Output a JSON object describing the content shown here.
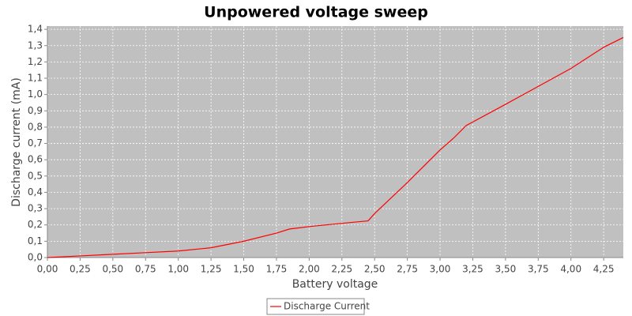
{
  "chart_data": {
    "type": "line",
    "title": "Unpowered voltage sweep",
    "x_label": "Battery voltage",
    "y_label": "Discharge current (mA)",
    "xlim": [
      0,
      4.4
    ],
    "ylim": [
      0,
      1.42
    ],
    "xticks": [
      {
        "value": 0,
        "label": "0,00"
      },
      {
        "value": 0.25,
        "label": "0,25"
      },
      {
        "value": 0.5,
        "label": "0,50"
      },
      {
        "value": 0.75,
        "label": "0,75"
      },
      {
        "value": 1,
        "label": "1,00"
      },
      {
        "value": 1.25,
        "label": "1,25"
      },
      {
        "value": 1.5,
        "label": "1,50"
      },
      {
        "value": 1.75,
        "label": "1,75"
      },
      {
        "value": 2,
        "label": "2,00"
      },
      {
        "value": 2.25,
        "label": "2,25"
      },
      {
        "value": 2.5,
        "label": "2,50"
      },
      {
        "value": 2.75,
        "label": "2,75"
      },
      {
        "value": 3,
        "label": "3,00"
      },
      {
        "value": 3.25,
        "label": "3,25"
      },
      {
        "value": 3.5,
        "label": "3,50"
      },
      {
        "value": 3.75,
        "label": "3,75"
      },
      {
        "value": 4,
        "label": "4,00"
      },
      {
        "value": 4.25,
        "label": "4,25"
      }
    ],
    "yticks": [
      {
        "value": 0,
        "label": "0,0"
      },
      {
        "value": 0.1,
        "label": "0,1"
      },
      {
        "value": 0.2,
        "label": "0,2"
      },
      {
        "value": 0.3,
        "label": "0,3"
      },
      {
        "value": 0.4,
        "label": "0,4"
      },
      {
        "value": 0.5,
        "label": "0,5"
      },
      {
        "value": 0.6,
        "label": "0,6"
      },
      {
        "value": 0.7,
        "label": "0,7"
      },
      {
        "value": 0.8,
        "label": "0,8"
      },
      {
        "value": 0.9,
        "label": "0,9"
      },
      {
        "value": 1,
        "label": "1,0"
      },
      {
        "value": 1.1,
        "label": "1,1"
      },
      {
        "value": 1.2,
        "label": "1,2"
      },
      {
        "value": 1.3,
        "label": "1,3"
      },
      {
        "value": 1.4,
        "label": "1,4"
      }
    ],
    "grid": true,
    "legend": "bottom",
    "x": [
      0,
      0.25,
      0.5,
      0.75,
      1.0,
      1.25,
      1.5,
      1.75,
      1.85,
      2.0,
      2.25,
      2.45,
      2.5,
      2.75,
      3.0,
      3.1,
      3.2,
      3.5,
      3.75,
      4.0,
      4.25,
      4.4
    ],
    "series": [
      {
        "name": "Discharge Current",
        "color": "#ff0000",
        "values": [
          0.0,
          0.01,
          0.02,
          0.03,
          0.04,
          0.06,
          0.1,
          0.15,
          0.175,
          0.19,
          0.21,
          0.225,
          0.27,
          0.46,
          0.66,
          0.73,
          0.81,
          0.94,
          1.05,
          1.16,
          1.29,
          1.35
        ]
      }
    ]
  }
}
